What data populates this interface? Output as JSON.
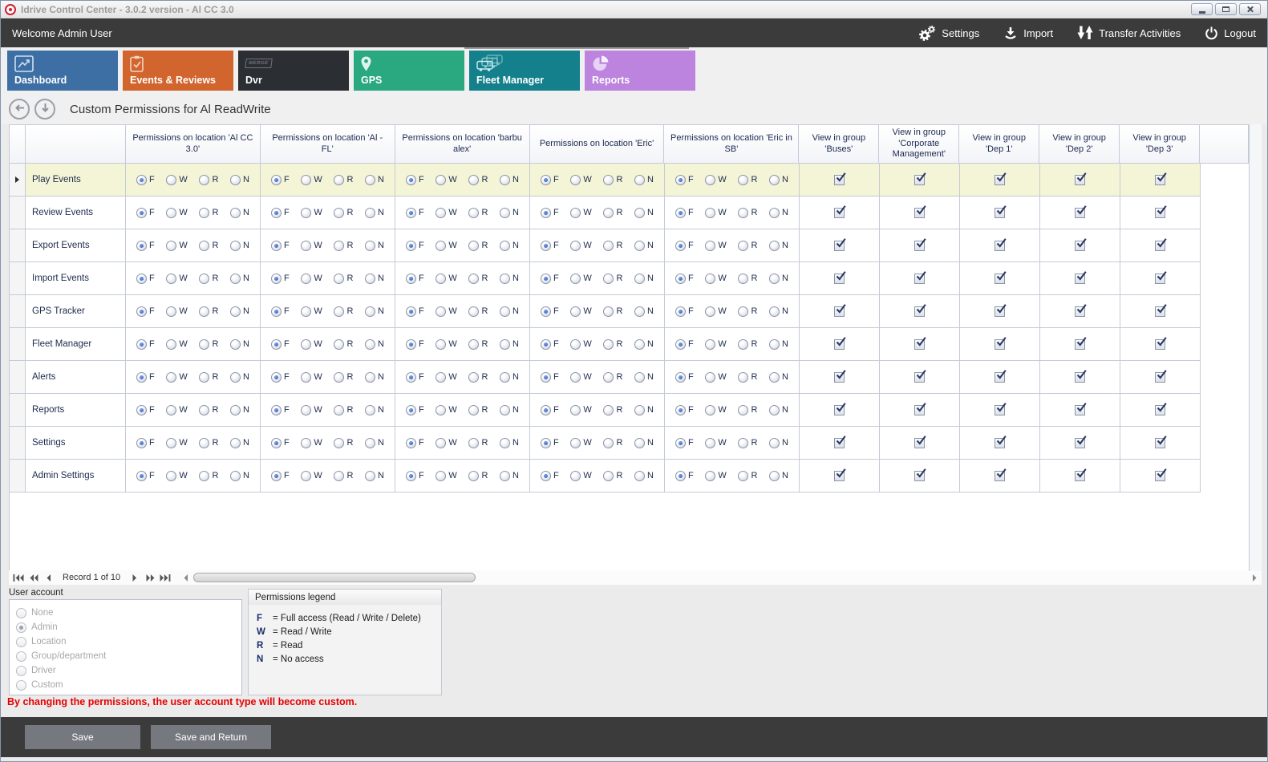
{
  "window": {
    "title": "Idrive Control Center - 3.0.2 version - Al CC 3.0",
    "controls": [
      "minimize",
      "maximize",
      "close"
    ]
  },
  "header": {
    "welcome": "Welcome Admin User",
    "actions": [
      {
        "label": "Settings",
        "icon": "gears-icon"
      },
      {
        "label": "Import",
        "icon": "import-icon"
      },
      {
        "label": "Transfer Activities",
        "icon": "transfer-arrows-icon"
      },
      {
        "label": "Logout",
        "icon": "power-icon"
      }
    ]
  },
  "tabs": {
    "items": [
      {
        "label": "Dashboard",
        "icon": "line-chart-icon",
        "color": "#3d6fa5",
        "selected": false
      },
      {
        "label": "Events & Reviews",
        "icon": "clipboard-check-icon",
        "color": "#d2642d",
        "selected": false
      },
      {
        "label": "Dvr",
        "icon": "merge-icon",
        "icon_text": "MERGE",
        "color": "#2b2e33",
        "selected": false
      },
      {
        "label": "GPS",
        "icon": "location-pin-icon",
        "color": "#2aa87f",
        "selected": false
      },
      {
        "label": "Fleet Manager",
        "icon": "trucks-icon",
        "color": "#14808c",
        "selected": true
      },
      {
        "label": "Reports",
        "icon": "pie-chart-icon",
        "color": "#bc84df",
        "selected": false
      }
    ]
  },
  "toolbar": {
    "back_icon": "back-arrow-icon",
    "down_icon": "down-arrow-icon",
    "title": "Custom Permissions for Al ReadWrite"
  },
  "permissions_table": {
    "location_columns": [
      "Permissions on location 'Al CC 3.0'",
      "Permissions on location 'Al - FL'",
      "Permissions on location 'barbu alex'",
      "Permissions on location 'Eric'",
      "Permissions on location 'Eric in SB'"
    ],
    "group_columns": [
      "View in group 'Buses'",
      "View in group 'Corporate Management'",
      "View in group 'Dep 1'",
      "View in group 'Dep 2'",
      "View in group 'Dep 3'"
    ],
    "radio_options": [
      "F",
      "W",
      "R",
      "N"
    ],
    "rows": [
      {
        "feature": "Play Events",
        "selected": true,
        "locations": [
          "F",
          "F",
          "F",
          "F",
          "F"
        ],
        "groups": [
          true,
          true,
          true,
          true,
          true
        ]
      },
      {
        "feature": "Review Events",
        "selected": false,
        "locations": [
          "F",
          "F",
          "F",
          "F",
          "F"
        ],
        "groups": [
          true,
          true,
          true,
          true,
          true
        ]
      },
      {
        "feature": "Export Events",
        "selected": false,
        "locations": [
          "F",
          "F",
          "F",
          "F",
          "F"
        ],
        "groups": [
          true,
          true,
          true,
          true,
          true
        ]
      },
      {
        "feature": "Import Events",
        "selected": false,
        "locations": [
          "F",
          "F",
          "F",
          "F",
          "F"
        ],
        "groups": [
          true,
          true,
          true,
          true,
          true
        ]
      },
      {
        "feature": "GPS Tracker",
        "selected": false,
        "locations": [
          "F",
          "F",
          "F",
          "F",
          "F"
        ],
        "groups": [
          true,
          true,
          true,
          true,
          true
        ]
      },
      {
        "feature": "Fleet Manager",
        "selected": false,
        "locations": [
          "F",
          "F",
          "F",
          "F",
          "F"
        ],
        "groups": [
          true,
          true,
          true,
          true,
          true
        ]
      },
      {
        "feature": "Alerts",
        "selected": false,
        "locations": [
          "F",
          "F",
          "F",
          "F",
          "F"
        ],
        "groups": [
          true,
          true,
          true,
          true,
          true
        ]
      },
      {
        "feature": "Reports",
        "selected": false,
        "locations": [
          "F",
          "F",
          "F",
          "F",
          "F"
        ],
        "groups": [
          true,
          true,
          true,
          true,
          true
        ]
      },
      {
        "feature": "Settings",
        "selected": false,
        "locations": [
          "F",
          "F",
          "F",
          "F",
          "F"
        ],
        "groups": [
          true,
          true,
          true,
          true,
          true
        ]
      },
      {
        "feature": "Admin Settings",
        "selected": false,
        "locations": [
          "F",
          "F",
          "F",
          "F",
          "F"
        ],
        "groups": [
          true,
          true,
          true,
          true,
          true
        ]
      }
    ]
  },
  "record_navigator": {
    "label": "Record 1 of 10",
    "left_icons": [
      "nav-first-icon",
      "nav-prev-page-icon",
      "nav-prev-icon"
    ],
    "right_icons": [
      "nav-next-icon",
      "nav-next-page-icon",
      "nav-last-icon"
    ]
  },
  "user_account": {
    "label": "User account",
    "options": [
      {
        "label": "None",
        "selected": false
      },
      {
        "label": "Admin",
        "selected": true
      },
      {
        "label": "Location",
        "selected": false
      },
      {
        "label": "Group/department",
        "selected": false
      },
      {
        "label": "Driver",
        "selected": false
      },
      {
        "label": "Custom",
        "selected": false
      }
    ]
  },
  "legend": {
    "title": "Permissions legend",
    "entries": [
      {
        "key": "F",
        "desc": "= Full access (Read / Write / Delete)"
      },
      {
        "key": "W",
        "desc": "= Read / Write"
      },
      {
        "key": "R",
        "desc": "= Read"
      },
      {
        "key": "N",
        "desc": "= No access"
      }
    ]
  },
  "warning": "By changing the permissions, the user account type will become custom.",
  "footer": {
    "save_label": "Save",
    "save_return_label": "Save and Return"
  },
  "colors": {
    "selected_row": "#f4f4d6",
    "warning": "#e60000",
    "dark_bar": "#3b3b3b",
    "radio_selected": "#2456c5"
  }
}
